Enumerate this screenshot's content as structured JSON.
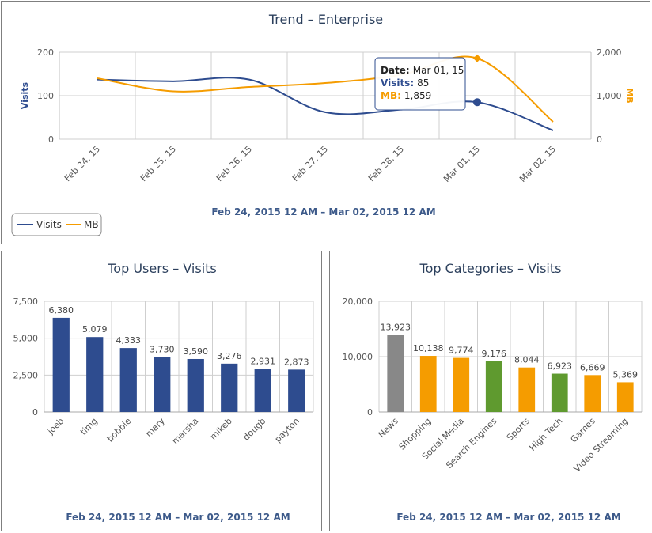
{
  "trend": {
    "title": "Trend – Enterprise",
    "date_range": "Feb 24, 2015 12 AM – Mar 02, 2015 12 AM",
    "tooltip": {
      "date_label": "Date:",
      "date_value": "Mar 01, 15",
      "visits_label": "Visits:",
      "visits_value": "85",
      "mb_label": "MB:",
      "mb_value": "1,859"
    },
    "legend": [
      "Visits",
      "MB"
    ]
  },
  "users": {
    "title": "Top Users – Visits",
    "date_range": "Feb 24, 2015 12 AM – Mar 02, 2015 12 AM"
  },
  "cats": {
    "title": "Top Categories – Visits",
    "date_range": "Feb 24, 2015 12 AM – Mar 02, 2015 12 AM"
  },
  "colors": {
    "visits": "#2e4c8f",
    "mb": "#f59c00",
    "gray": "#888888",
    "orange": "#f59c00",
    "green": "#5f9a2f"
  },
  "chart_data": [
    {
      "type": "line",
      "title": "Trend – Enterprise",
      "x": [
        "Feb 24, 15",
        "Feb 25, 15",
        "Feb 26, 15",
        "Feb 27, 15",
        "Feb 28, 15",
        "Mar 01, 15",
        "Mar 02, 15"
      ],
      "xlabel": "Feb 24, 2015 12 AM – Mar 02, 2015 12 AM",
      "series": [
        {
          "name": "Visits",
          "axis": "left",
          "values": [
            137,
            133,
            137,
            62,
            68,
            85,
            20
          ]
        },
        {
          "name": "MB",
          "axis": "right",
          "values": [
            1400,
            1100,
            1200,
            1290,
            1480,
            1859,
            400
          ]
        }
      ],
      "ylabel": "Visits",
      "ylim": [
        0,
        200
      ],
      "yticks": [
        "0",
        "100",
        "200"
      ],
      "y2label": "MB",
      "y2lim": [
        0,
        2000
      ],
      "y2ticks": [
        "0",
        "1,000",
        "2,000"
      ],
      "grid": true,
      "legend": "bottom-left"
    },
    {
      "type": "bar",
      "title": "Top Users – Visits",
      "categories": [
        "joeb",
        "timg",
        "bobbie",
        "mary",
        "marsha",
        "mikeb",
        "dougb",
        "payton"
      ],
      "values": [
        6380,
        5079,
        4333,
        3730,
        3590,
        3276,
        2931,
        2873
      ],
      "data_labels": [
        "6,380",
        "5,079",
        "4,333",
        "3,730",
        "3,590",
        "3,276",
        "2,931",
        "2,873"
      ],
      "ylim": [
        0,
        7500
      ],
      "yticks": [
        "0",
        "2,500",
        "5,000",
        "7,500"
      ],
      "xlabel": "Feb 24, 2015 12 AM – Mar 02, 2015 12 AM",
      "grid": true
    },
    {
      "type": "bar",
      "title": "Top Categories – Visits",
      "categories": [
        "News",
        "Shopping",
        "Social Media",
        "Search Engines",
        "Sports",
        "High Tech",
        "Games",
        "Video Streaming"
      ],
      "values": [
        13923,
        10138,
        9774,
        9176,
        8044,
        6923,
        6669,
        5369
      ],
      "data_labels": [
        "13,923",
        "10,138",
        "9,774",
        "9,176",
        "8,044",
        "6,923",
        "6,669",
        "5,369"
      ],
      "bar_colors": [
        "gray",
        "orange",
        "orange",
        "green",
        "orange",
        "green",
        "orange",
        "orange"
      ],
      "ylim": [
        0,
        20000
      ],
      "yticks": [
        "0",
        "10,000",
        "20,000"
      ],
      "xlabel": "Feb 24, 2015 12 AM – Mar 02, 2015 12 AM",
      "grid": true
    }
  ]
}
